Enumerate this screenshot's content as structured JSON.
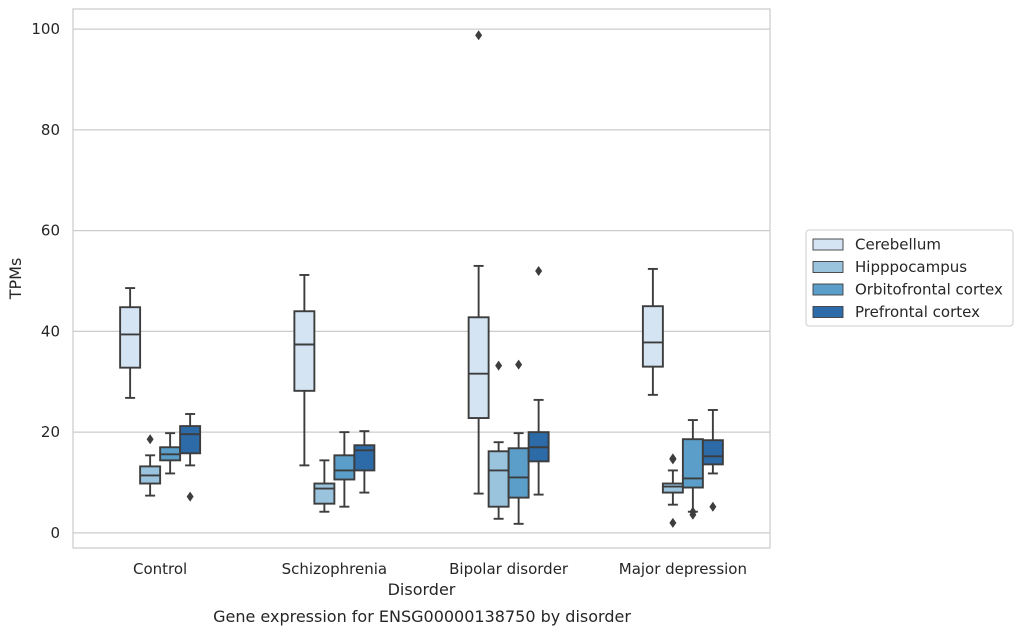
{
  "caption": "Gene expression for ENSG00000138750 by disorder",
  "chart_data": {
    "type": "box",
    "xlabel": "Disorder",
    "ylabel": "TPMs",
    "ylim": [
      -3,
      104
    ],
    "yticks": [
      0,
      20,
      40,
      60,
      80,
      100
    ],
    "grid": true,
    "legend_position": "right",
    "categories": [
      "Control",
      "Schizophrenia",
      "Bipolar disorder",
      "Major depression"
    ],
    "series": [
      {
        "name": "Cerebellum",
        "color": "#d4e4f3",
        "boxes": [
          {
            "whisker_low": 26.8,
            "q1": 32.8,
            "median": 39.4,
            "q3": 44.8,
            "whisker_high": 48.6,
            "outliers": []
          },
          {
            "whisker_low": 13.4,
            "q1": 28.2,
            "median": 37.4,
            "q3": 44.0,
            "whisker_high": 51.2,
            "outliers": []
          },
          {
            "whisker_low": 7.8,
            "q1": 22.8,
            "median": 31.6,
            "q3": 42.8,
            "whisker_high": 53.0,
            "outliers": [
              98.8
            ]
          },
          {
            "whisker_low": 27.4,
            "q1": 33.0,
            "median": 37.8,
            "q3": 45.0,
            "whisker_high": 52.4,
            "outliers": []
          }
        ]
      },
      {
        "name": "Hipppocampus",
        "color": "#9ac4de",
        "boxes": [
          {
            "whisker_low": 7.4,
            "q1": 9.8,
            "median": 11.4,
            "q3": 13.2,
            "whisker_high": 15.4,
            "outliers": [
              18.6
            ]
          },
          {
            "whisker_low": 4.2,
            "q1": 5.8,
            "median": 8.8,
            "q3": 9.8,
            "whisker_high": 14.4,
            "outliers": []
          },
          {
            "whisker_low": 2.8,
            "q1": 5.2,
            "median": 12.4,
            "q3": 16.2,
            "whisker_high": 18.0,
            "outliers": [
              33.2
            ]
          },
          {
            "whisker_low": 5.6,
            "q1": 8.0,
            "median": 9.2,
            "q3": 9.8,
            "whisker_high": 12.4,
            "outliers": [
              2.0,
              14.6,
              14.8
            ]
          }
        ]
      },
      {
        "name": "Orbitofrontal cortex",
        "color": "#5a9ec9",
        "boxes": [
          {
            "whisker_low": 11.8,
            "q1": 14.4,
            "median": 15.6,
            "q3": 17.0,
            "whisker_high": 19.8,
            "outliers": []
          },
          {
            "whisker_low": 5.2,
            "q1": 10.6,
            "median": 12.4,
            "q3": 15.4,
            "whisker_high": 20.0,
            "outliers": []
          },
          {
            "whisker_low": 1.8,
            "q1": 7.0,
            "median": 11.0,
            "q3": 16.8,
            "whisker_high": 19.8,
            "outliers": [
              33.4
            ]
          },
          {
            "whisker_low": 4.2,
            "q1": 9.0,
            "median": 10.8,
            "q3": 18.6,
            "whisker_high": 22.4,
            "outliers": [
              3.6,
              4.2
            ]
          }
        ]
      },
      {
        "name": "Prefrontal cortex",
        "color": "#2c6aa8",
        "boxes": [
          {
            "whisker_low": 13.4,
            "q1": 15.8,
            "median": 19.6,
            "q3": 21.2,
            "whisker_high": 23.6,
            "outliers": [
              7.2
            ]
          },
          {
            "whisker_low": 8.0,
            "q1": 12.4,
            "median": 16.4,
            "q3": 17.4,
            "whisker_high": 20.2,
            "outliers": []
          },
          {
            "whisker_low": 7.6,
            "q1": 14.2,
            "median": 17.0,
            "q3": 20.0,
            "whisker_high": 26.4,
            "outliers": [
              52.0
            ]
          },
          {
            "whisker_low": 11.8,
            "q1": 13.6,
            "median": 15.2,
            "q3": 18.4,
            "whisker_high": 24.4,
            "outliers": [
              5.2
            ]
          }
        ]
      }
    ]
  }
}
